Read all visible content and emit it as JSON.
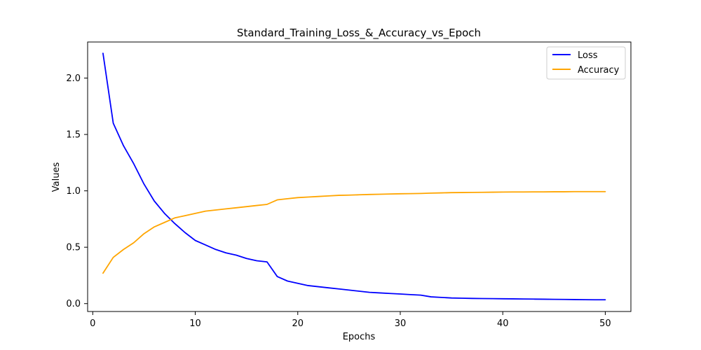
{
  "chart_data": {
    "type": "line",
    "title": "Standard_Training_Loss_&_Accuracy_vs_Epoch",
    "xlabel": "Epochs",
    "ylabel": "Values",
    "xlim": [
      -0.5,
      52.5
    ],
    "ylim": [
      -0.07,
      2.32
    ],
    "xticks": [
      0,
      10,
      20,
      30,
      40,
      50
    ],
    "yticks": [
      0.0,
      0.5,
      1.0,
      1.5,
      2.0
    ],
    "ytick_labels": [
      "0.0",
      "0.5",
      "1.0",
      "1.5",
      "2.0"
    ],
    "grid": false,
    "legend": "top-right",
    "x": [
      1,
      2,
      3,
      4,
      5,
      6,
      7,
      8,
      9,
      10,
      11,
      12,
      13,
      14,
      15,
      16,
      17,
      18,
      19,
      20,
      21,
      22,
      23,
      24,
      25,
      26,
      27,
      28,
      29,
      30,
      31,
      32,
      33,
      34,
      35,
      36,
      37,
      38,
      39,
      40,
      41,
      42,
      43,
      44,
      45,
      46,
      47,
      48,
      49,
      50
    ],
    "series": [
      {
        "name": "Loss",
        "color": "#0000ff",
        "values": [
          2.22,
          1.6,
          1.4,
          1.24,
          1.06,
          0.91,
          0.8,
          0.71,
          0.63,
          0.56,
          0.52,
          0.48,
          0.45,
          0.43,
          0.4,
          0.38,
          0.37,
          0.24,
          0.2,
          0.18,
          0.16,
          0.15,
          0.14,
          0.13,
          0.12,
          0.11,
          0.1,
          0.095,
          0.09,
          0.085,
          0.08,
          0.075,
          0.06,
          0.055,
          0.05,
          0.048,
          0.046,
          0.045,
          0.044,
          0.043,
          0.042,
          0.041,
          0.04,
          0.039,
          0.038,
          0.037,
          0.036,
          0.035,
          0.034,
          0.034
        ]
      },
      {
        "name": "Accuracy",
        "color": "#ffa500",
        "values": [
          0.27,
          0.41,
          0.48,
          0.54,
          0.62,
          0.68,
          0.72,
          0.76,
          0.78,
          0.8,
          0.82,
          0.83,
          0.84,
          0.85,
          0.86,
          0.87,
          0.88,
          0.92,
          0.93,
          0.94,
          0.945,
          0.95,
          0.955,
          0.96,
          0.962,
          0.965,
          0.968,
          0.97,
          0.972,
          0.974,
          0.975,
          0.977,
          0.98,
          0.982,
          0.984,
          0.985,
          0.986,
          0.987,
          0.988,
          0.989,
          0.99,
          0.99,
          0.991,
          0.991,
          0.992,
          0.992,
          0.993,
          0.993,
          0.993,
          0.993
        ]
      }
    ]
  }
}
